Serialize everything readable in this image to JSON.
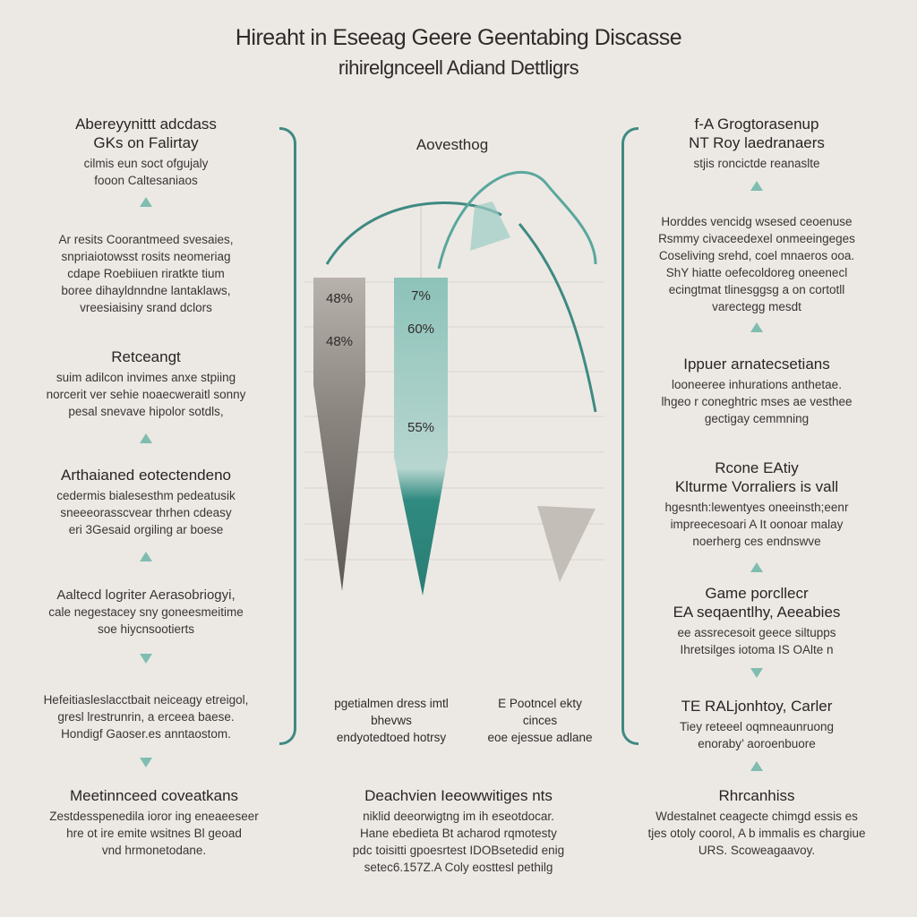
{
  "title": {
    "line1": "Hireaht in Eseeag Geere  Geentabing Discasse",
    "line2": "rihirelgnceell Adiand Dettligrs"
  },
  "left": {
    "blocks": [
      {
        "head": [
          "Abereyуnittt adcdass",
          "GKs on Falirtay"
        ],
        "body": [
          "cilmis eun soct ofgujaly",
          "fooon Caltesaniaos"
        ]
      },
      {
        "head": [],
        "body": [
          "Ar resits Coorantmeed svesaies,",
          "snpriaiotowsst rosits neomeriag",
          "cdape Roebiiuen riratkte tium",
          "boree dihayldnndne lantaklaws,",
          "vreesiaisiny srand dclors"
        ]
      },
      {
        "head": [
          "Retceangt"
        ],
        "body": [
          "suim adilcon invimes anxe stpiing",
          "norcerit ver sehie noaecweraitl sonny",
          "pesal snevave hipolor sotdls,"
        ]
      },
      {
        "head": [
          "Arthaianed eotectendeno"
        ],
        "body": [
          "cedermis bialesesthm pedeatusik",
          "sneeeorasscvear thrhen cdeasy",
          "eri 3Gesaid orgiling ar boese"
        ]
      },
      {
        "head": [],
        "body": [
          "Aaltecd logriter Aerasobriogyi,",
          "cale negestacey sny goneesmeitime",
          "soe hiycnsootierts"
        ]
      },
      {
        "head": [],
        "body": [
          "Hefeitiasleslacctbait neiceagy etreigol,",
          "gresl lrestrunrin, a erceea baese.",
          "Hondigf Gaoser.es anntaostom."
        ]
      }
    ],
    "arrows": [
      "up",
      "up",
      "up",
      "up",
      "down",
      "down"
    ]
  },
  "right": {
    "blocks": [
      {
        "head": [
          "f-A Grogtorasenup",
          "NT Roy laedranaers"
        ],
        "body": [
          "stjis roncictde reanaslte"
        ]
      },
      {
        "head": [],
        "body": [
          "Horddes vencidg wsesed ceoenuse",
          "Rsmmy civaceedexel onmeeingeges",
          "Coseliving srehd, coel mnaeros ooa.",
          "ShY hiatte oefecoldoreg oneenecl",
          "ecingtmat tlinesggsg a on cortotll",
          "varectegg mesdt"
        ]
      },
      {
        "head": [
          "Ippuer arnatecsetians"
        ],
        "body": [
          "looneeree inhurations anthetae.",
          "lhgeo r coneghtric mses ae vesthee",
          "gectigay cemmning"
        ]
      },
      {
        "head": [
          "Rcone EAtiy",
          "Klturme Vorraliers is vall"
        ],
        "body": [
          "hgesnth:lewentyes oneeinsth;eenr",
          "impreecesoari A It oonoar malay",
          "noerherg ces endnswve"
        ]
      },
      {
        "head": [
          "Game porcllecr",
          "EA seqaentlhy, Aeeabies"
        ],
        "body": [
          "ee assrecesoit geece siltupps",
          "Ihretsilges iotoma IS OAlte n"
        ]
      },
      {
        "head": [
          "TE RALjonhtoy, Carler"
        ],
        "body": [
          "Tiey reteeel oqmneaunruong",
          "enoraby’ aoroenbuore"
        ]
      }
    ],
    "arrows": [
      "up",
      "up",
      "up",
      "up",
      "down",
      "down"
    ]
  },
  "chart_center": {
    "heading": "Aovesthog",
    "bar_labels": {
      "grey": [
        "48%",
        "48%"
      ],
      "teal": [
        "7%",
        "60%",
        "55%"
      ]
    },
    "captions": [
      {
        "lines": [
          "pgetialmen dress imtl",
          "bhevws",
          "endyotedtoed hotrsy"
        ]
      },
      {
        "lines": [
          "E Pootncel ekty",
          "cinces",
          "eoe ejessue adlane"
        ]
      }
    ]
  },
  "bottom": [
    {
      "head": "Meetinnceed coveatkans",
      "body": [
        "Zestdesspenedila ioror ing eneaeeseer",
        "hre ot ire emite wsitnes Bl geoad",
        "vnd hrmonetodane."
      ]
    },
    {
      "head": "Deachvien Ieeowwitiges nts",
      "body": [
        "niklid deeorwigtng im ih eseotdocar.",
        "Hane ebedieta Bt acharod rqmotesty",
        "pdc toisitti gpoesrtest IDOBsetedid enig",
        "setec6.157Z.A Coly eosttesl pethilg"
      ]
    },
    {
      "head": "Rhrcanhiss",
      "body": [
        "Wdestalnet ceagecte chimgd essis es",
        "tjes otoly coorol, A b immalis es chargiue",
        "URS. Scoweagaavoy."
      ]
    }
  ],
  "colors": {
    "teal": "#3f8a82",
    "teal_light": "#8cc3b9",
    "grey_dark": "#6e6864",
    "grey_light": "#bdb7b2",
    "background": "#ece9e4"
  }
}
